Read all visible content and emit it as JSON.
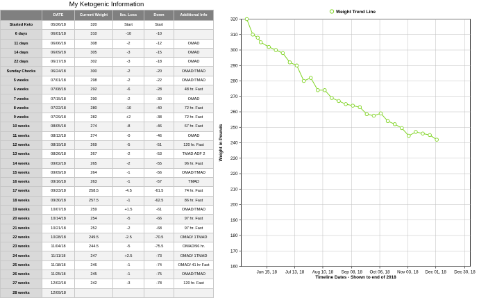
{
  "table": {
    "title": "My Ketogenic Information",
    "headers": [
      "",
      "DATE",
      "Current Weight",
      "lbs. Loss",
      "Down",
      "Additional Info"
    ],
    "rows": [
      [
        "Started Keto",
        "05/26/18",
        "320",
        "Start",
        "Start",
        ""
      ],
      [
        "6 days",
        "06/01/18",
        "310",
        "-10",
        "-10",
        ""
      ],
      [
        "11 days",
        "06/06/18",
        "308",
        "-2",
        "-12",
        "OMAD"
      ],
      [
        "14 days",
        "06/09/18",
        "305",
        "-3",
        "-15",
        "OMAD"
      ],
      [
        "22 days",
        "06/17/18",
        "302",
        "-3",
        "-18",
        "OMAD"
      ],
      [
        "Sunday Checks",
        "06/24/18",
        "300",
        "-2",
        "-20",
        "OMAD/TMAD"
      ],
      [
        "5 weeks",
        "07/01/18",
        "298",
        "-2",
        "-22",
        "OMAD/TMAD"
      ],
      [
        "6 weeks",
        "07/08/18",
        "292",
        "-6",
        "-28",
        "48 hr. Fast"
      ],
      [
        "7 weeks",
        "07/15/18",
        "290",
        "-2",
        "-30",
        "OMAD"
      ],
      [
        "8 weeks",
        "07/22/18",
        "280",
        "-10",
        "-40",
        "72 hr. Fast"
      ],
      [
        "9 weeks",
        "07/29/18",
        "282",
        "+2",
        "-38",
        "72 hr. Fast"
      ],
      [
        "10 weeks",
        "08/05/18",
        "274",
        "-8",
        "-46",
        "67 hr. Fast"
      ],
      [
        "11 weeks",
        "08/12/18",
        "274",
        "-0",
        "-46",
        "OMAD"
      ],
      [
        "12 weeks",
        "08/19/18",
        "269",
        "-5",
        "-51",
        "120 hr. Fast"
      ],
      [
        "13 weeks",
        "08/26/18",
        "267",
        "-2",
        "-53",
        "TMAD ADF 2"
      ],
      [
        "14 weeks",
        "09/02/18",
        "265",
        "-2",
        "-55",
        "96 hr. Fast"
      ],
      [
        "15 weeks",
        "09/09/18",
        "264",
        "-1",
        "-56",
        "OMAD/TMAD"
      ],
      [
        "16 weeks",
        "09/16/18",
        "263",
        "-1",
        "-57",
        "TMAD"
      ],
      [
        "17 weeks",
        "09/23/18",
        "258.5",
        "-4.5",
        "-61.5",
        "74 hr. Fast"
      ],
      [
        "18 weeks",
        "09/30/18",
        "257.5",
        "-1",
        "-62.5",
        "86 hr. Fast"
      ],
      [
        "19 weeks",
        "10/07/18",
        "259",
        "+1.5",
        "-61",
        "OMAD/TMAD"
      ],
      [
        "20 weeks",
        "10/14/18",
        "254",
        "-5",
        "-66",
        "97 hr. Fast"
      ],
      [
        "21 weeks",
        "10/21/18",
        "252",
        "-2",
        "-68",
        "97 hr. Fast"
      ],
      [
        "22 weeks",
        "10/28/18",
        "249.5",
        "-2.5",
        "-70.5",
        "OMAD/ 1TMAD"
      ],
      [
        "23 weeks",
        "11/04/18",
        "244.5",
        "-5",
        "-75.5",
        "OMAD/96 hr."
      ],
      [
        "24 weeks",
        "11/11/18",
        "247",
        "+2.5",
        "-73",
        "OMAD/ 1TMAD"
      ],
      [
        "25 weeks",
        "11/18/18",
        "246",
        "-1",
        "-74",
        "OMAD/ 41 hr Fast"
      ],
      [
        "26 weeks",
        "11/25/18",
        "245",
        "-1",
        "-75",
        "OMAD/TMAD"
      ],
      [
        "27 weeks",
        "12/02/18",
        "242",
        "-3",
        "-78",
        "120 hr. Fast"
      ],
      [
        "28 weeks",
        "12/09/18",
        "",
        "",
        "",
        ""
      ]
    ]
  },
  "chart_data": {
    "type": "line",
    "legend": "Weight Trend Line",
    "legend_position": "top-center",
    "xlabel": "Timeline Dates - Shown to end of 2018",
    "ylabel": "Weight in Pounds",
    "ylim": [
      160,
      320
    ],
    "yticks": [
      160,
      170,
      180,
      190,
      200,
      210,
      220,
      230,
      240,
      250,
      260,
      270,
      280,
      290,
      300,
      310,
      320
    ],
    "xlim": [
      "2018-05-26",
      "2018-12-30"
    ],
    "xticks": [
      {
        "date": "2018-06-15",
        "label": "Jun 15, 18"
      },
      {
        "date": "2018-07-13",
        "label": "Jul 13, 18"
      },
      {
        "date": "2018-08-10",
        "label": "Aug 10, 18"
      },
      {
        "date": "2018-09-08",
        "label": "Sep 08, 18"
      },
      {
        "date": "2018-10-06",
        "label": "Oct 06, 18"
      },
      {
        "date": "2018-11-03",
        "label": "Nov 03, 18"
      },
      {
        "date": "2018-12-01",
        "label": "Dec 01, 18"
      },
      {
        "date": "2018-12-30",
        "label": "Dec 30, 18"
      }
    ],
    "grid": true,
    "series": [
      {
        "name": "Weight Trend Line",
        "color": "#7ed321",
        "x": [
          "2018-05-26",
          "2018-06-01",
          "2018-06-06",
          "2018-06-09",
          "2018-06-17",
          "2018-06-24",
          "2018-07-01",
          "2018-07-08",
          "2018-07-15",
          "2018-07-22",
          "2018-07-29",
          "2018-08-05",
          "2018-08-12",
          "2018-08-19",
          "2018-08-26",
          "2018-09-02",
          "2018-09-09",
          "2018-09-16",
          "2018-09-23",
          "2018-09-30",
          "2018-10-07",
          "2018-10-14",
          "2018-10-21",
          "2018-10-28",
          "2018-11-04",
          "2018-11-11",
          "2018-11-18",
          "2018-11-25",
          "2018-12-02"
        ],
        "y": [
          320,
          310,
          308,
          305,
          302,
          300,
          298,
          292,
          290,
          280,
          282,
          274,
          274,
          269,
          267,
          265,
          264,
          263,
          258.5,
          257.5,
          259,
          254,
          252,
          249.5,
          244.5,
          247,
          246,
          245,
          242
        ]
      }
    ]
  }
}
